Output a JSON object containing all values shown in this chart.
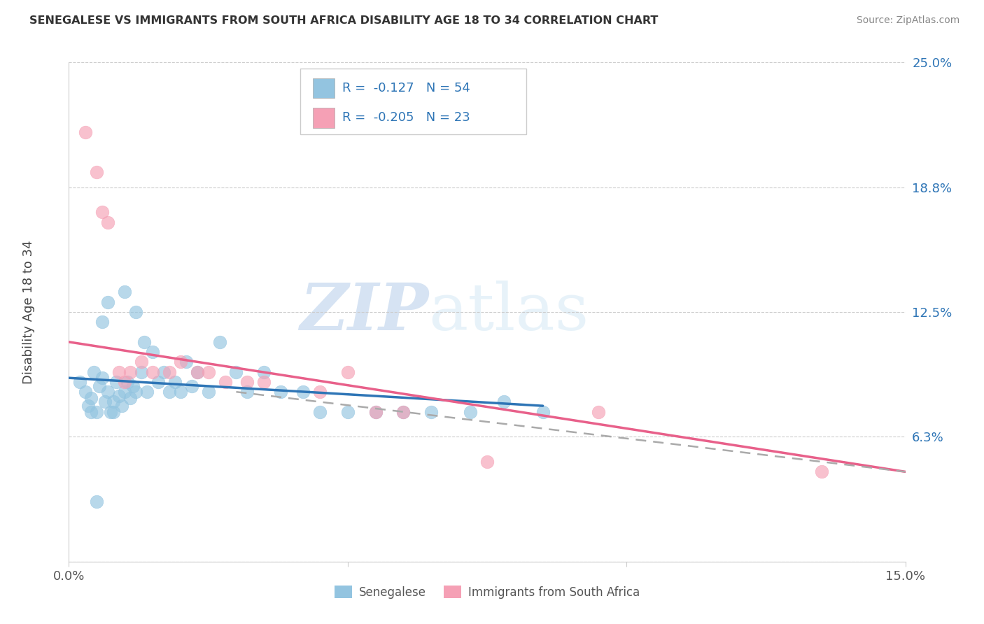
{
  "title": "SENEGALESE VS IMMIGRANTS FROM SOUTH AFRICA DISABILITY AGE 18 TO 34 CORRELATION CHART",
  "source": "Source: ZipAtlas.com",
  "ylabel": "Disability Age 18 to 34",
  "xlim": [
    0.0,
    15.0
  ],
  "ylim": [
    0.0,
    25.0
  ],
  "xtick_positions": [
    0.0,
    5.0,
    10.0,
    15.0
  ],
  "xticklabels": [
    "0.0%",
    "",
    "",
    "15.0%"
  ],
  "ytick_positions": [
    0.0,
    6.25,
    12.5,
    18.75,
    25.0
  ],
  "ytick_labels": [
    "",
    "6.3%",
    "12.5%",
    "18.8%",
    "25.0%"
  ],
  "blue_color": "#93C4E0",
  "pink_color": "#F5A0B5",
  "blue_line_color": "#2E75B6",
  "pink_line_color": "#E8608A",
  "dashed_line_color": "#AAAAAA",
  "legend_R_blue": "-0.127",
  "legend_N_blue": "54",
  "legend_R_pink": "-0.205",
  "legend_N_pink": "23",
  "legend_label_blue": "Senegalese",
  "legend_label_pink": "Immigrants from South Africa",
  "watermark_zip": "ZIP",
  "watermark_atlas": "atlas",
  "senegalese_x": [
    0.2,
    0.3,
    0.35,
    0.4,
    0.45,
    0.5,
    0.55,
    0.6,
    0.65,
    0.7,
    0.75,
    0.8,
    0.85,
    0.9,
    0.95,
    1.0,
    1.05,
    1.1,
    1.15,
    1.2,
    1.3,
    1.35,
    1.4,
    1.5,
    1.6,
    1.7,
    1.8,
    1.9,
    2.0,
    2.1,
    2.2,
    2.3,
    2.5,
    2.7,
    3.0,
    3.2,
    3.5,
    3.8,
    4.2,
    4.5,
    5.0,
    5.5,
    6.0,
    6.5,
    7.2,
    7.8,
    8.5,
    1.0,
    1.2,
    0.6,
    0.7,
    0.8,
    0.4,
    0.5
  ],
  "senegalese_y": [
    9.0,
    8.5,
    7.8,
    8.2,
    9.5,
    7.5,
    8.8,
    9.2,
    8.0,
    8.5,
    7.5,
    8.0,
    9.0,
    8.3,
    7.8,
    8.5,
    9.0,
    8.2,
    8.8,
    8.5,
    9.5,
    11.0,
    8.5,
    10.5,
    9.0,
    9.5,
    8.5,
    9.0,
    8.5,
    10.0,
    8.8,
    9.5,
    8.5,
    11.0,
    9.5,
    8.5,
    9.5,
    8.5,
    8.5,
    7.5,
    7.5,
    7.5,
    7.5,
    7.5,
    7.5,
    8.0,
    7.5,
    13.5,
    12.5,
    12.0,
    13.0,
    7.5,
    7.5,
    3.0
  ],
  "sa_x": [
    0.3,
    0.5,
    0.6,
    0.7,
    0.9,
    1.0,
    1.1,
    1.3,
    1.5,
    1.8,
    2.0,
    2.3,
    2.5,
    2.8,
    3.2,
    3.5,
    4.5,
    5.0,
    5.5,
    6.0,
    7.5,
    9.5,
    13.5
  ],
  "sa_y": [
    21.5,
    19.5,
    17.5,
    17.0,
    9.5,
    9.0,
    9.5,
    10.0,
    9.5,
    9.5,
    10.0,
    9.5,
    9.5,
    9.0,
    9.0,
    9.0,
    8.5,
    9.5,
    7.5,
    7.5,
    5.0,
    7.5,
    4.5
  ],
  "blue_trendline_x": [
    0.0,
    8.5
  ],
  "blue_trendline_y": [
    9.2,
    7.8
  ],
  "pink_trendline_x": [
    0.0,
    15.0
  ],
  "pink_trendline_y": [
    11.0,
    4.5
  ],
  "dashed_trendline_x": [
    3.0,
    15.0
  ],
  "dashed_trendline_y": [
    8.5,
    4.5
  ]
}
